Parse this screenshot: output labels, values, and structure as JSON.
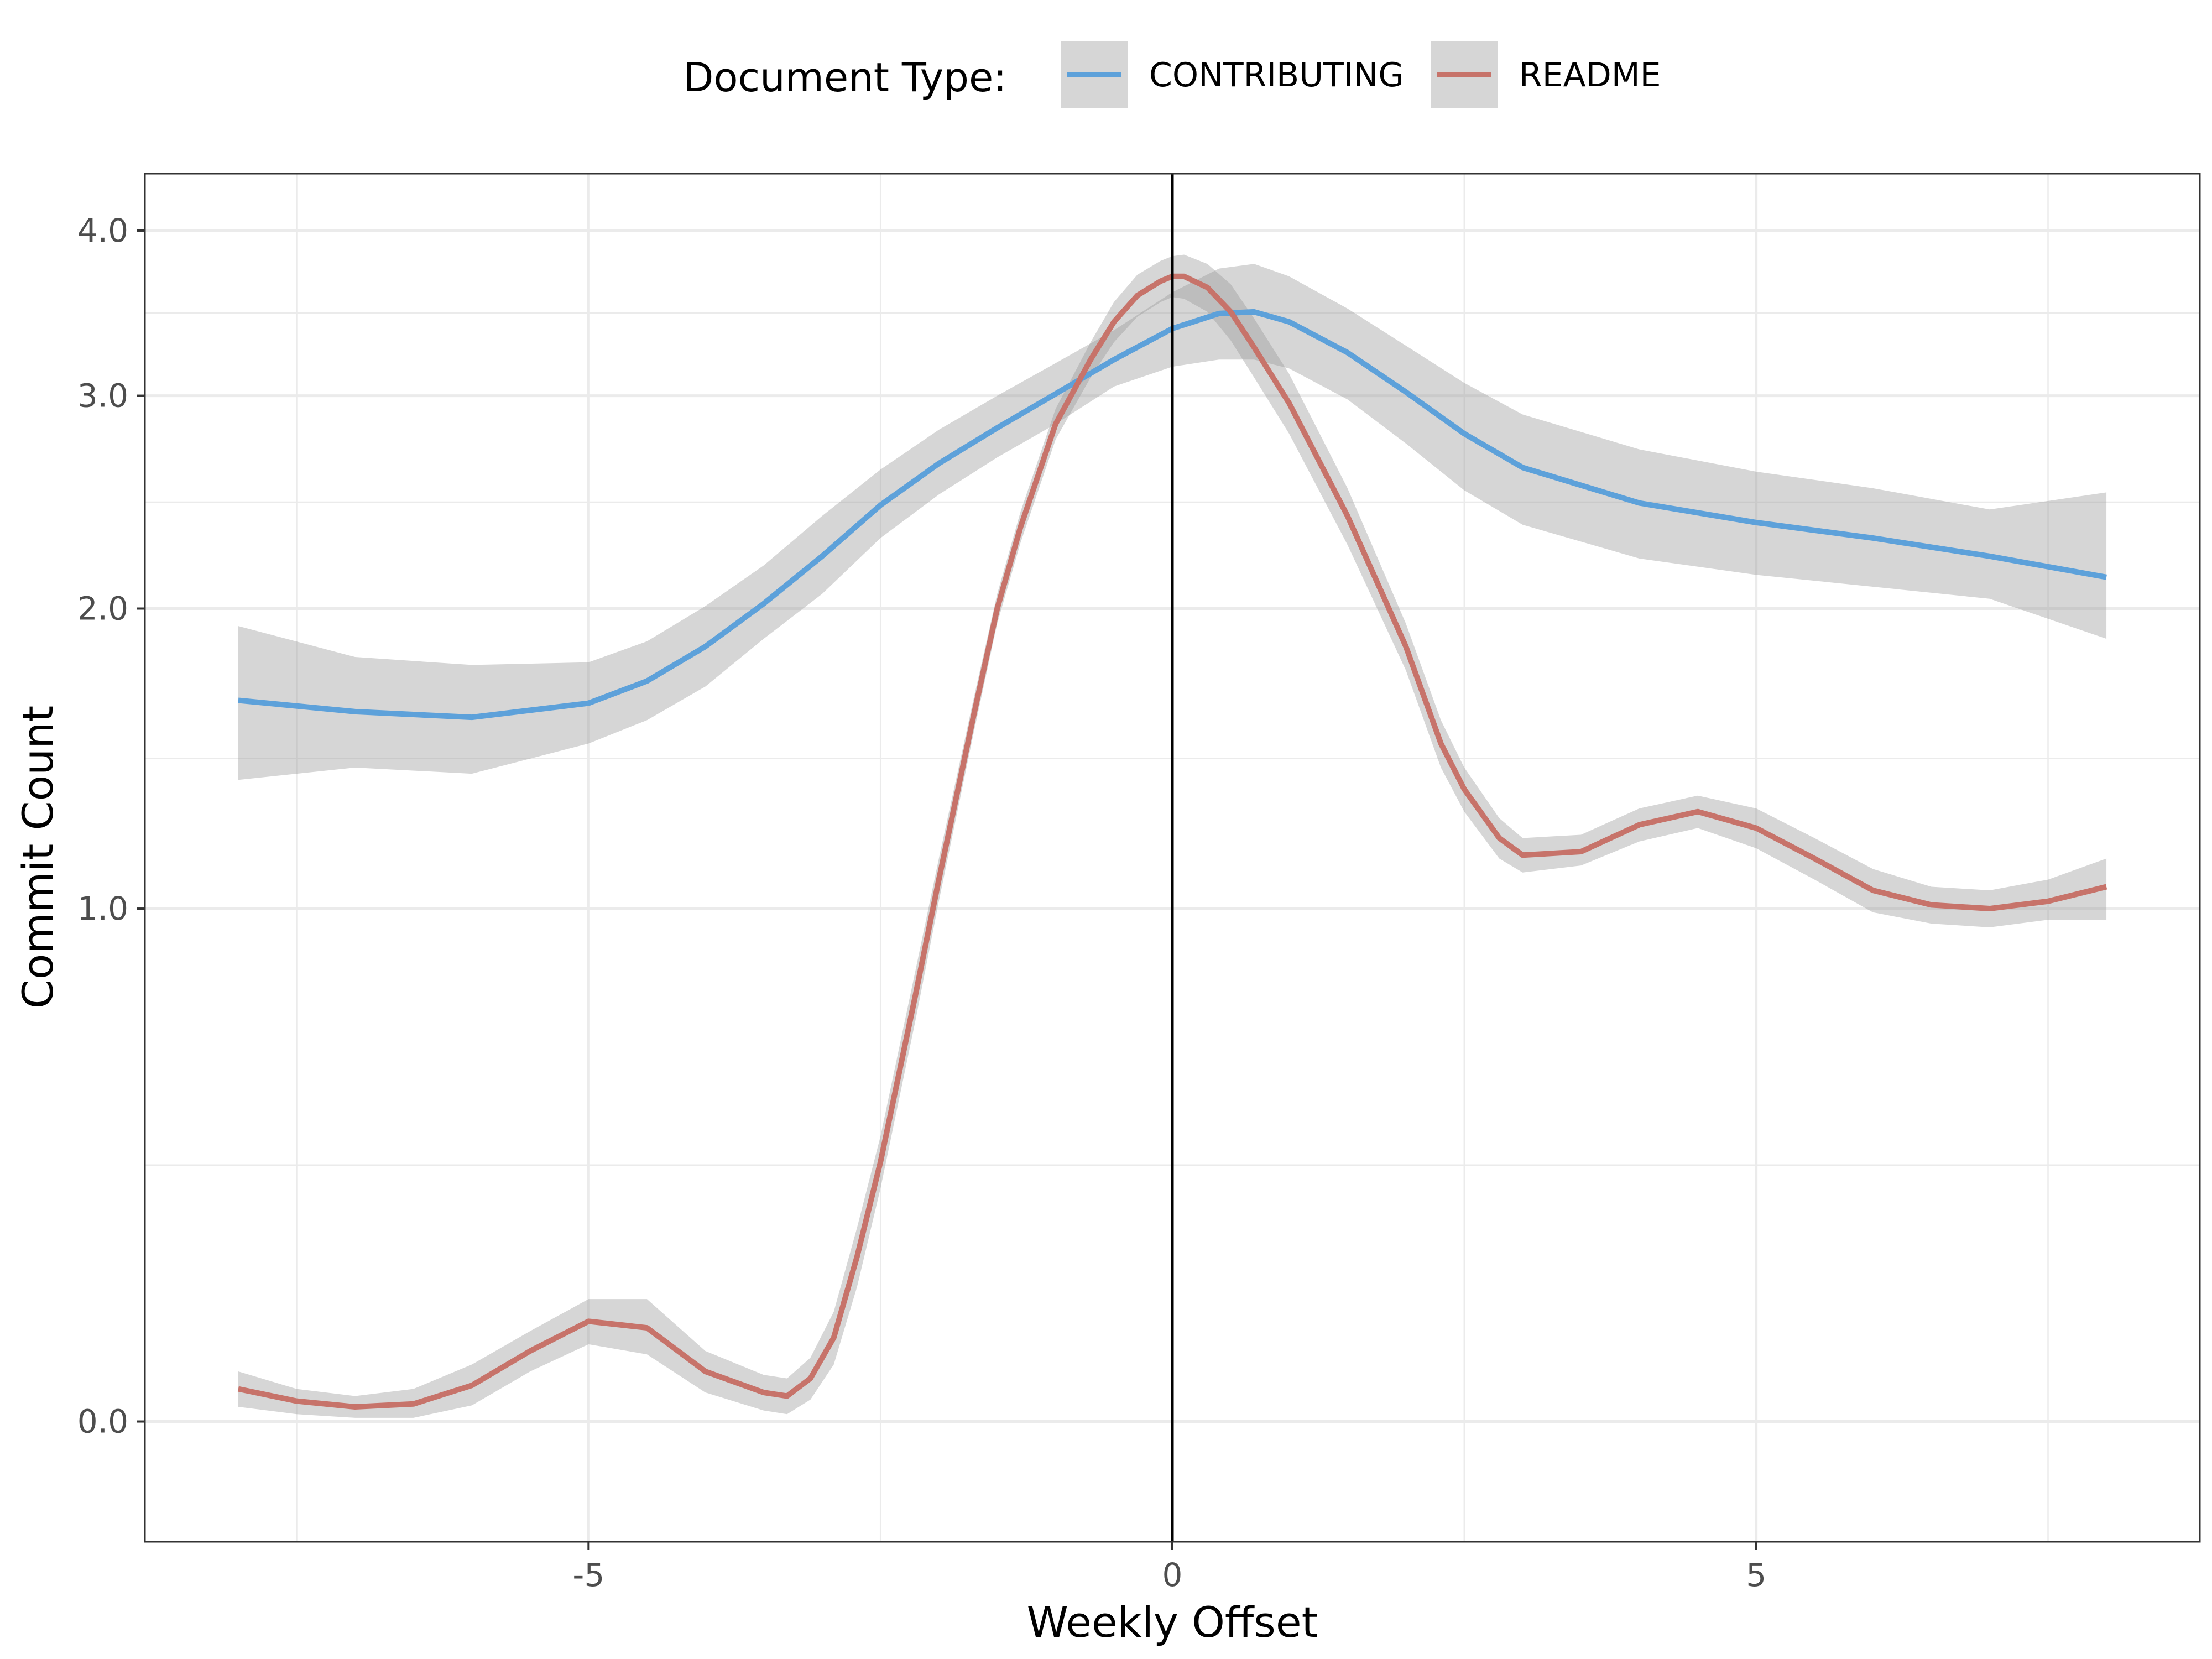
{
  "chart_data": {
    "type": "line",
    "title": "",
    "xlabel": "Weekly Offset",
    "ylabel": "Commit Count",
    "y_scale": "log1p",
    "xlim": [
      -8.8,
      8.8
    ],
    "ylim": [
      -0.15,
      4.4
    ],
    "x_ticks": [
      -5,
      0,
      5
    ],
    "x_tick_labels": [
      "-5",
      "0",
      "5"
    ],
    "y_ticks": [
      0,
      1,
      2,
      3,
      4
    ],
    "y_tick_labels": [
      "0.0",
      "1.0",
      "2.0",
      "3.0",
      "4.0"
    ],
    "grid": true,
    "vline_x": 0,
    "legend": {
      "title": "Document Type:",
      "position": "top",
      "entries": [
        "CONTRIBUTING",
        "README"
      ]
    },
    "series": [
      {
        "name": "CONTRIBUTING",
        "color": "#5DA1DA",
        "x": [
          -8,
          -7,
          -6,
          -5,
          -4.5,
          -4,
          -3.5,
          -3,
          -2.5,
          -2,
          -1.5,
          -1,
          -0.5,
          0,
          0.4,
          0.7,
          1,
          1.5,
          2,
          2.5,
          3,
          4,
          5,
          6,
          7,
          8
        ],
        "y": [
          1.65,
          1.61,
          1.59,
          1.64,
          1.72,
          1.85,
          2.02,
          2.22,
          2.45,
          2.65,
          2.83,
          3.01,
          3.2,
          3.38,
          3.47,
          3.48,
          3.42,
          3.24,
          3.02,
          2.8,
          2.63,
          2.46,
          2.37,
          2.3,
          2.22,
          2.13
        ],
        "ci_lower": [
          1.38,
          1.42,
          1.4,
          1.5,
          1.58,
          1.7,
          1.88,
          2.06,
          2.3,
          2.5,
          2.68,
          2.85,
          3.05,
          3.16,
          3.2,
          3.2,
          3.15,
          2.98,
          2.75,
          2.52,
          2.36,
          2.21,
          2.14,
          2.09,
          2.04,
          1.88
        ],
        "ci_upper": [
          1.93,
          1.81,
          1.78,
          1.79,
          1.87,
          2.01,
          2.18,
          2.4,
          2.62,
          2.82,
          3.0,
          3.18,
          3.37,
          3.6,
          3.75,
          3.78,
          3.7,
          3.5,
          3.28,
          3.07,
          2.9,
          2.72,
          2.61,
          2.53,
          2.43,
          2.51
        ]
      },
      {
        "name": "README",
        "color": "#C7736A",
        "x": [
          -8,
          -7.5,
          -7,
          -6.5,
          -6,
          -5.5,
          -5,
          -4.5,
          -4,
          -3.5,
          -3.3,
          -3.1,
          -2.9,
          -2.7,
          -2.5,
          -2.2,
          -2,
          -1.7,
          -1.5,
          -1.3,
          -1,
          -0.7,
          -0.5,
          -0.3,
          -0.1,
          0,
          0.1,
          0.3,
          0.5,
          0.7,
          1,
          1.5,
          2,
          2.3,
          2.5,
          2.8,
          3,
          3.5,
          4,
          4.5,
          5,
          5.5,
          6,
          6.5,
          7,
          7.5,
          8
        ],
        "y": [
          0.045,
          0.028,
          0.02,
          0.024,
          0.05,
          0.1,
          0.145,
          0.135,
          0.07,
          0.04,
          0.035,
          0.06,
          0.12,
          0.25,
          0.42,
          0.78,
          1.08,
          1.6,
          2.0,
          2.35,
          2.85,
          3.2,
          3.42,
          3.58,
          3.67,
          3.7,
          3.7,
          3.63,
          3.48,
          3.27,
          2.96,
          2.4,
          1.85,
          1.5,
          1.35,
          1.2,
          1.15,
          1.16,
          1.24,
          1.28,
          1.23,
          1.14,
          1.05,
          1.01,
          1.0,
          1.02,
          1.06
        ],
        "ci_lower": [
          0.02,
          0.01,
          0.005,
          0.005,
          0.022,
          0.07,
          0.11,
          0.095,
          0.04,
          0.015,
          0.01,
          0.03,
          0.08,
          0.2,
          0.37,
          0.72,
          1.02,
          1.54,
          1.94,
          2.28,
          2.77,
          3.1,
          3.3,
          3.45,
          3.54,
          3.57,
          3.56,
          3.48,
          3.31,
          3.1,
          2.8,
          2.27,
          1.76,
          1.42,
          1.28,
          1.14,
          1.1,
          1.12,
          1.19,
          1.23,
          1.17,
          1.08,
          0.99,
          0.96,
          0.95,
          0.97,
          0.97
        ],
        "ci_upper": [
          0.07,
          0.045,
          0.035,
          0.045,
          0.08,
          0.13,
          0.18,
          0.18,
          0.1,
          0.065,
          0.06,
          0.09,
          0.16,
          0.3,
          0.47,
          0.84,
          1.14,
          1.66,
          2.06,
          2.42,
          2.93,
          3.3,
          3.54,
          3.71,
          3.8,
          3.83,
          3.84,
          3.78,
          3.65,
          3.44,
          3.12,
          2.53,
          1.94,
          1.58,
          1.42,
          1.26,
          1.2,
          1.21,
          1.29,
          1.33,
          1.29,
          1.2,
          1.11,
          1.06,
          1.05,
          1.08,
          1.14
        ]
      }
    ]
  }
}
